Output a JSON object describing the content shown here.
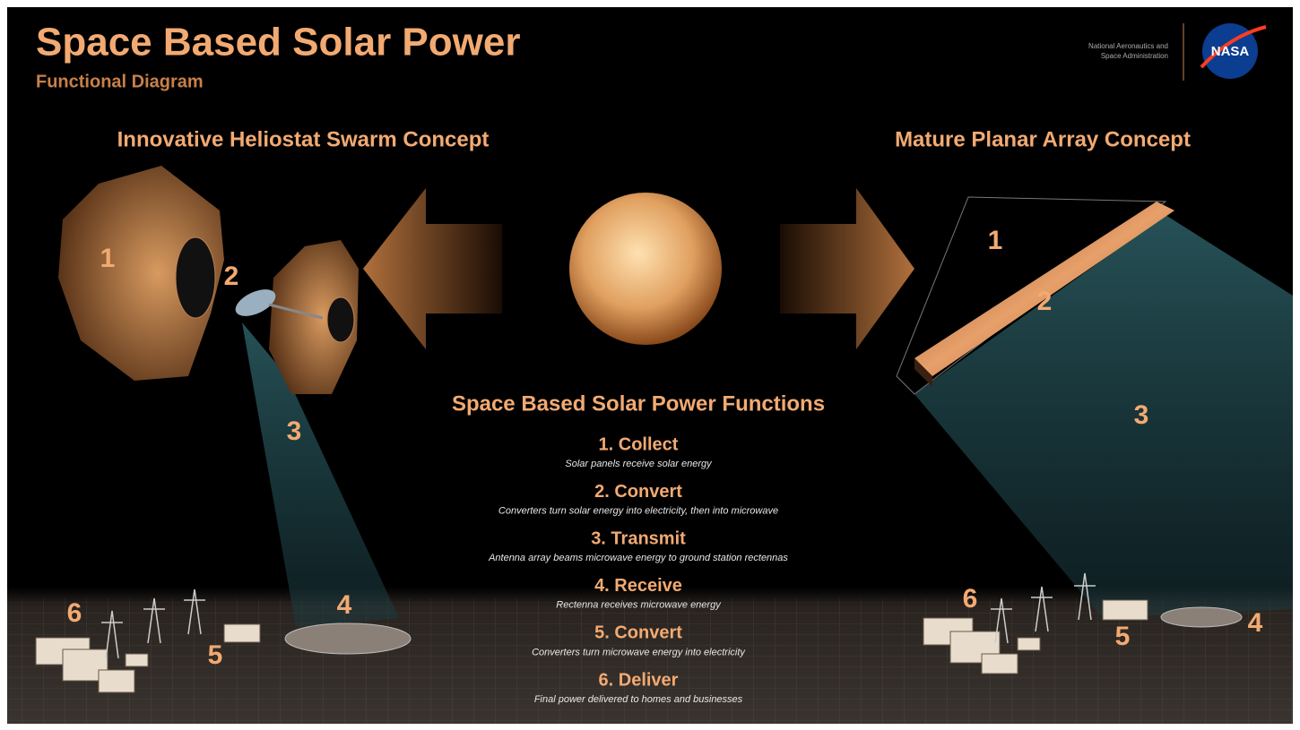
{
  "header": {
    "title": "Space Based Solar Power",
    "subtitle": "Functional Diagram",
    "agency": [
      "National Aeronautics and",
      "Space Administration"
    ],
    "logo": "NASA"
  },
  "concepts": {
    "left": {
      "title": "Innovative Heliostat Swarm Concept",
      "labels": [
        "1",
        "2",
        "3",
        "4",
        "5",
        "6"
      ]
    },
    "right": {
      "title": "Mature Planar Array Concept",
      "labels": [
        "1",
        "2",
        "3",
        "4",
        "5",
        "6"
      ]
    }
  },
  "functions": {
    "title": "Space Based Solar Power Functions",
    "items": [
      {
        "title": "1. Collect",
        "description": "Solar panels receive solar energy"
      },
      {
        "title": "2. Convert",
        "description": "Converters turn solar energy into electricity, then into microwave"
      },
      {
        "title": "3. Transmit",
        "description": "Antenna array beams microwave energy to ground station rectennas"
      },
      {
        "title": "4. Receive",
        "description": "Rectenna receives microwave energy"
      },
      {
        "title": "5. Convert",
        "description": "Converters turn microwave energy into electricity"
      },
      {
        "title": "6. Deliver",
        "description": "Final power delivered to homes and businesses"
      }
    ]
  }
}
